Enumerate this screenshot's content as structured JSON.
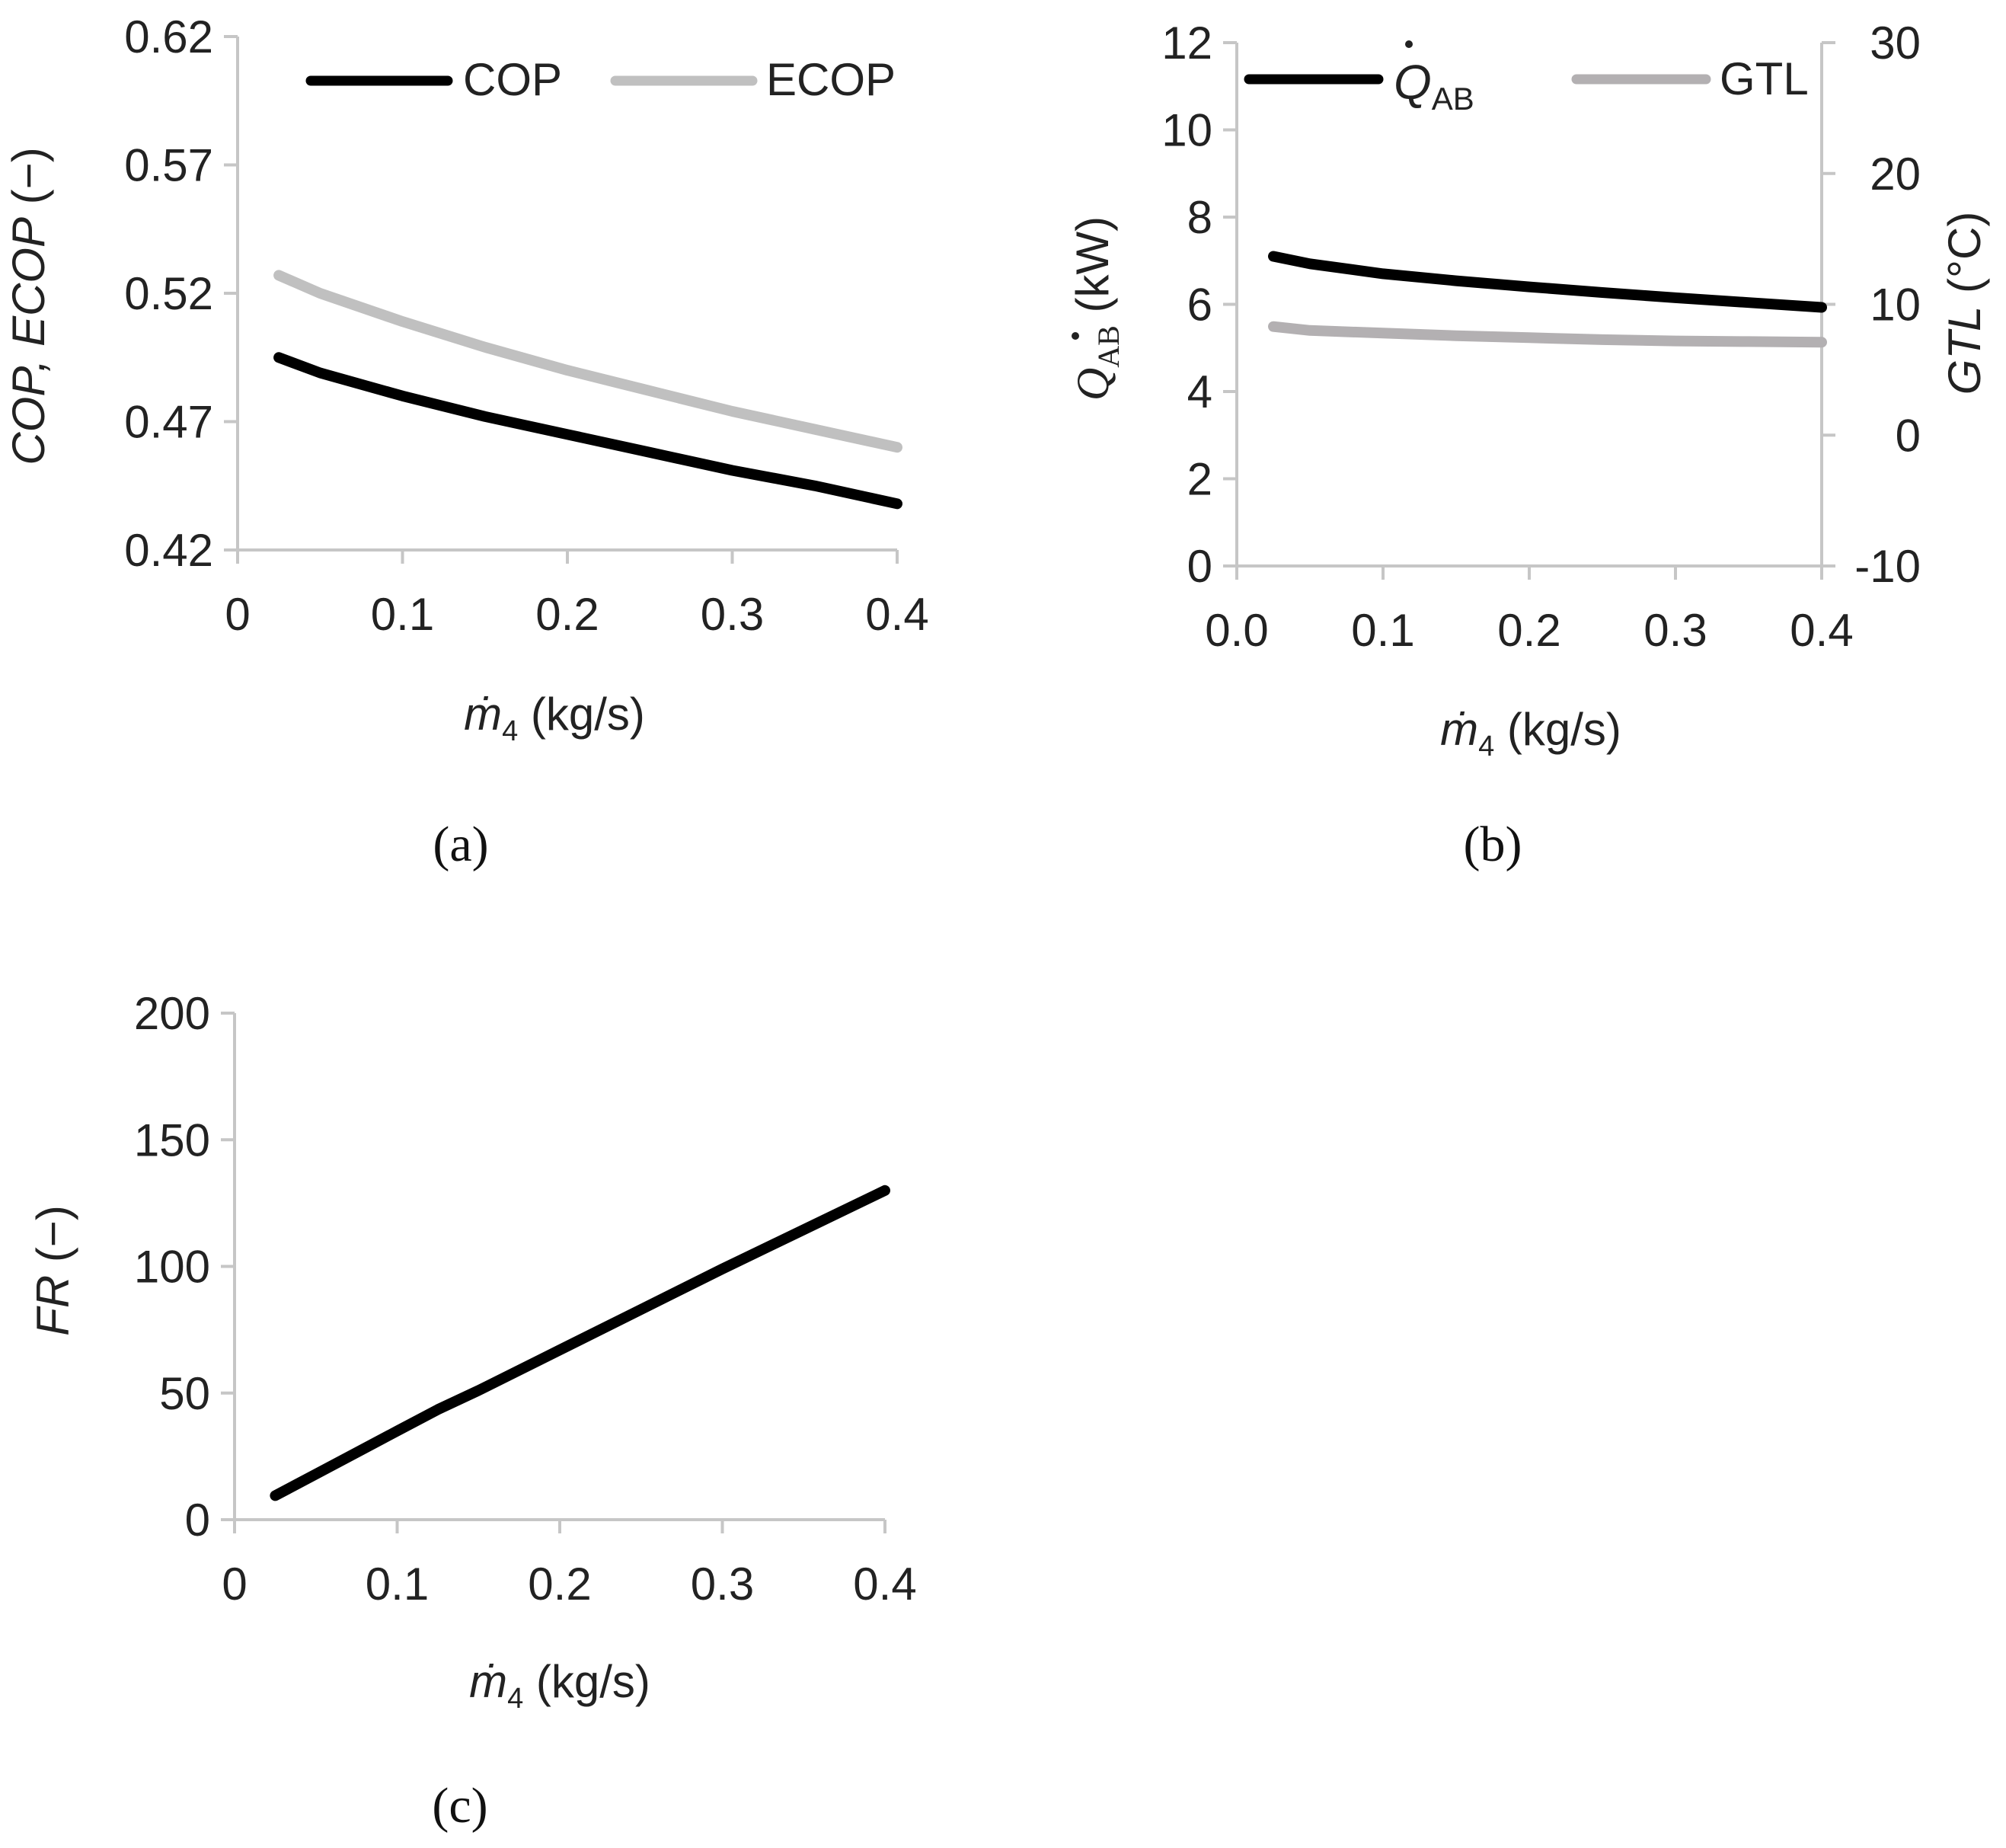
{
  "chart_data": [
    {
      "panel_label": "(a)",
      "type": "line",
      "xlabel": "ṁ₄ (kg/s)",
      "ylabel": "COP, ECOP (−)",
      "xlim": [
        0,
        0.4
      ],
      "ylim": [
        0.42,
        0.62
      ],
      "xticks": [
        "0",
        "0.1",
        "0.2",
        "0.3",
        "0.4"
      ],
      "yticks": [
        "0.42",
        "0.47",
        "0.52",
        "0.57",
        "0.62"
      ],
      "legend_position": "top",
      "series": [
        {
          "name": "COP",
          "color": "#000000",
          "x": [
            0.025,
            0.05,
            0.1,
            0.15,
            0.2,
            0.25,
            0.3,
            0.35,
            0.4
          ],
          "y": [
            0.495,
            0.489,
            0.48,
            0.472,
            0.465,
            0.458,
            0.451,
            0.445,
            0.438
          ]
        },
        {
          "name": "ECOP",
          "color": "#c0c0c0",
          "x": [
            0.025,
            0.05,
            0.1,
            0.15,
            0.2,
            0.25,
            0.3,
            0.35,
            0.4
          ],
          "y": [
            0.527,
            0.52,
            0.509,
            0.499,
            0.49,
            0.482,
            0.474,
            0.467,
            0.46
          ]
        }
      ]
    },
    {
      "panel_label": "(b)",
      "type": "line",
      "xlabel": "ṁ₄ (kg/s)",
      "ylabel": "Q̇AB (kW)",
      "y2label": "GTL (°C)",
      "xlim": [
        0,
        0.4
      ],
      "ylim": [
        0,
        12
      ],
      "y2lim": [
        -10,
        30
      ],
      "xticks": [
        "0.0",
        "0.1",
        "0.2",
        "0.3",
        "0.4"
      ],
      "yticks": [
        "0",
        "2",
        "4",
        "6",
        "8",
        "10",
        "12"
      ],
      "y2ticks": [
        "-10",
        "0",
        "10",
        "20",
        "30"
      ],
      "legend_position": "top",
      "series": [
        {
          "name": "Q̇AB",
          "legend_symbol": "Q",
          "legend_subscript": "AB",
          "axis": "left",
          "color": "#000000",
          "x": [
            0.025,
            0.05,
            0.1,
            0.15,
            0.2,
            0.25,
            0.3,
            0.35,
            0.4
          ],
          "y": [
            7.1,
            6.93,
            6.7,
            6.54,
            6.4,
            6.27,
            6.15,
            6.04,
            5.93
          ]
        },
        {
          "name": "GTL",
          "axis": "right",
          "color": "#b3b0b2",
          "x": [
            0.025,
            0.05,
            0.1,
            0.15,
            0.2,
            0.25,
            0.3,
            0.35,
            0.4
          ],
          "y": [
            8.3,
            8.0,
            7.8,
            7.6,
            7.45,
            7.3,
            7.2,
            7.15,
            7.1
          ]
        }
      ]
    },
    {
      "panel_label": "(c)",
      "type": "line",
      "xlabel": "ṁ₄ (kg/s)",
      "ylabel": "FR (−)",
      "xlim": [
        0,
        0.4
      ],
      "ylim": [
        0,
        200
      ],
      "xticks": [
        "0",
        "0.1",
        "0.2",
        "0.3",
        "0.4"
      ],
      "yticks": [
        "0",
        "50",
        "100",
        "150",
        "200"
      ],
      "series": [
        {
          "color": "#000000",
          "x": [
            0.025,
            0.05,
            0.1,
            0.125,
            0.15,
            0.2,
            0.25,
            0.3,
            0.35,
            0.4
          ],
          "y": [
            9.5,
            18,
            35,
            43.5,
            51,
            67,
            83,
            99,
            114.5,
            130
          ]
        }
      ]
    }
  ]
}
